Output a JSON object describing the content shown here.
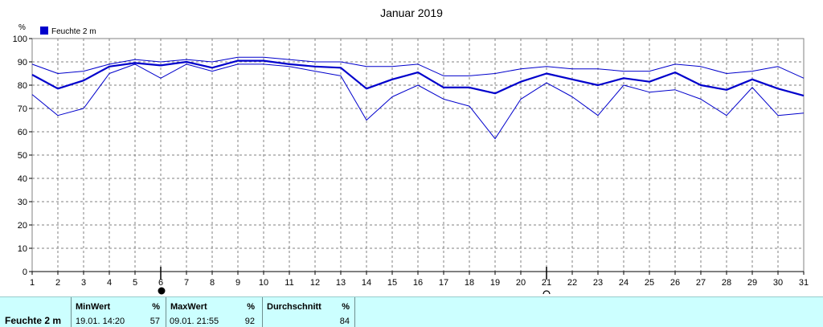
{
  "chart_data": {
    "type": "line",
    "title": "Januar 2019",
    "ylabel": "%",
    "ylim": [
      0,
      100
    ],
    "yticks": [
      0,
      10,
      20,
      30,
      40,
      50,
      60,
      70,
      80,
      90,
      100
    ],
    "xlim": [
      1,
      31
    ],
    "x": [
      1,
      2,
      3,
      4,
      5,
      6,
      7,
      8,
      9,
      10,
      11,
      12,
      13,
      14,
      15,
      16,
      17,
      18,
      19,
      20,
      21,
      22,
      23,
      24,
      25,
      26,
      27,
      28,
      29,
      30,
      31
    ],
    "legend": "Feuchte  2 m",
    "grid": true,
    "series": [
      {
        "role": "max",
        "values": [
          89,
          85,
          86,
          89,
          91,
          90,
          91,
          90,
          92,
          92,
          91,
          90,
          90,
          88,
          88,
          89,
          84,
          84,
          85,
          87,
          88,
          87,
          87,
          86,
          86,
          89,
          88,
          85,
          86,
          88,
          83
        ]
      },
      {
        "role": "mean",
        "values": [
          84.5,
          78.5,
          82,
          88,
          89.5,
          88.5,
          90,
          87.5,
          90.5,
          90.5,
          89,
          88,
          87.5,
          78.5,
          82.5,
          85.5,
          79,
          79,
          76.5,
          81.5,
          85,
          82.5,
          80,
          83,
          81.5,
          85.5,
          80,
          78,
          82.5,
          78.5,
          75.5
        ]
      },
      {
        "role": "min",
        "values": [
          76,
          67,
          70,
          85,
          89,
          83,
          89,
          86,
          89,
          89,
          88,
          86,
          84,
          65,
          75,
          80,
          74,
          71,
          57,
          74,
          81,
          75,
          67,
          80,
          77,
          78,
          74,
          67,
          79,
          67,
          68
        ]
      }
    ],
    "markers": [
      {
        "x": 6,
        "symbol": "full-moon"
      },
      {
        "x": 21,
        "symbol": "new-moon"
      }
    ]
  },
  "stats": {
    "sensor": "Feuchte  2 m",
    "min": {
      "header": "MinWert",
      "unit": "%",
      "time": "19.01.  14:20",
      "value": "57"
    },
    "max": {
      "header": "MaxWert",
      "unit": "%",
      "time": "09.01.  21:55",
      "value": "92"
    },
    "avg": {
      "header": "Durchschnitt",
      "unit": "%",
      "value": "84"
    }
  },
  "colors": {
    "series": "#0000cc",
    "grid": "#808080",
    "axis": "#000000",
    "stats_bg": "#ccffff"
  }
}
